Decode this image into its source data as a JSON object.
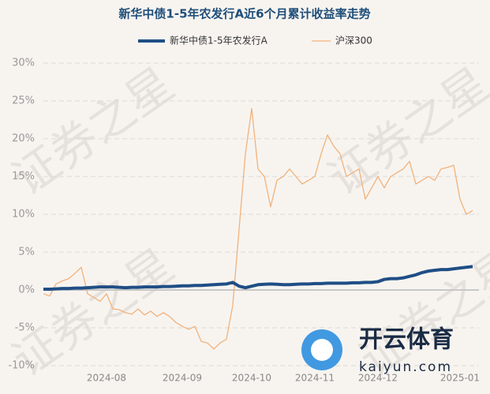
{
  "chart_data": {
    "type": "line",
    "title": "新华中债1-5年农发行A近6个月累计收益率走势",
    "categories": [
      null,
      null,
      null,
      null,
      null,
      null,
      null,
      null,
      null,
      null,
      "2024-08",
      null,
      null,
      null,
      null,
      null,
      null,
      null,
      null,
      null,
      null,
      null,
      "2024-09",
      null,
      null,
      null,
      null,
      null,
      null,
      null,
      null,
      null,
      null,
      "2024-10",
      null,
      null,
      null,
      null,
      null,
      null,
      null,
      null,
      null,
      "2024-11",
      null,
      null,
      null,
      null,
      null,
      null,
      null,
      null,
      null,
      "2024-12",
      null,
      null,
      null,
      null,
      null,
      null,
      null,
      null,
      null,
      null,
      null,
      null,
      "2025-01",
      null,
      null
    ],
    "series": [
      {
        "name": "新华中债1-5年农发行A",
        "color": "#1f4e85",
        "width": 4,
        "values": [
          0.1,
          0.1,
          0.15,
          0.2,
          0.2,
          0.25,
          0.25,
          0.3,
          0.35,
          0.4,
          0.4,
          0.4,
          0.35,
          0.3,
          0.35,
          0.35,
          0.4,
          0.4,
          0.4,
          0.45,
          0.45,
          0.5,
          0.55,
          0.55,
          0.6,
          0.6,
          0.65,
          0.7,
          0.75,
          0.8,
          1.0,
          0.5,
          0.3,
          0.5,
          0.7,
          0.75,
          0.8,
          0.75,
          0.7,
          0.7,
          0.75,
          0.8,
          0.8,
          0.85,
          0.85,
          0.9,
          0.9,
          0.9,
          0.9,
          0.95,
          0.95,
          1.0,
          1.0,
          1.1,
          1.4,
          1.5,
          1.5,
          1.6,
          1.8,
          2.0,
          2.3,
          2.5,
          2.6,
          2.7,
          2.7,
          2.8,
          2.9,
          3.0,
          3.1
        ]
      },
      {
        "name": "沪深300",
        "color": "#f2b27a",
        "width": 1.3,
        "values": [
          -0.5,
          -0.8,
          0.8,
          1.2,
          1.5,
          2.2,
          3.0,
          -0.5,
          -1.0,
          -1.5,
          -0.5,
          -2.5,
          -2.6,
          -3.0,
          -3.2,
          -2.5,
          -3.3,
          -2.8,
          -3.5,
          -3.0,
          -3.5,
          -4.3,
          -4.8,
          -5.2,
          -4.8,
          -6.8,
          -7.0,
          -7.8,
          -7.0,
          -6.5,
          -2.0,
          8,
          18,
          24,
          16,
          15,
          11,
          14.5,
          15,
          16,
          15,
          14,
          14.5,
          15,
          18,
          20.5,
          19,
          18,
          15,
          15.5,
          16,
          12,
          13.5,
          15,
          13.5,
          15,
          15.5,
          16,
          17,
          14,
          14.5,
          15,
          14.5,
          16,
          16.2,
          16.5,
          12,
          10,
          10.5
        ]
      }
    ],
    "ylim": [
      -10,
      30
    ],
    "yticks": [
      {
        "value": -10,
        "label": "-10%"
      },
      {
        "value": -5,
        "label": "-5%"
      },
      {
        "value": 0,
        "label": "0%"
      },
      {
        "value": 5,
        "label": "5%"
      },
      {
        "value": 10,
        "label": "10%"
      },
      {
        "value": 15,
        "label": "15%"
      },
      {
        "value": 20,
        "label": "20%"
      },
      {
        "value": 25,
        "label": "25%"
      },
      {
        "value": 30,
        "label": "30%"
      }
    ],
    "grid": true,
    "watermark": "证券之星",
    "logo_title": "开云体育",
    "logo_url": "kaiyun.com"
  }
}
